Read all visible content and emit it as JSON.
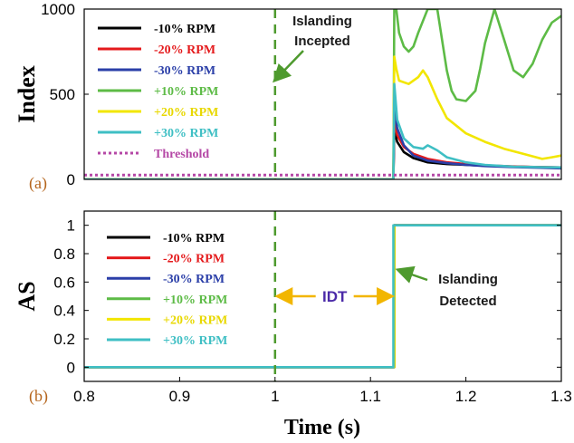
{
  "chart_data": [
    {
      "panel_label": "(a)",
      "type": "line",
      "ylabel": "Index",
      "xlim": [
        0.8,
        1.3
      ],
      "ylim": [
        0,
        1000
      ],
      "yticks": [
        0,
        500,
        1000
      ],
      "legend_position": "top-left",
      "series": [
        {
          "name": "-10% RPM",
          "color": "#000000",
          "x": [
            0.8,
            1.124,
            1.125,
            1.128,
            1.135,
            1.145,
            1.16,
            1.18,
            1.2,
            1.22,
            1.25,
            1.28,
            1.3
          ],
          "y": [
            0,
            0,
            290,
            220,
            160,
            125,
            100,
            90,
            85,
            80,
            75,
            72,
            70
          ]
        },
        {
          "name": "-20% RPM",
          "color": "#e41a1c",
          "x": [
            0.8,
            1.124,
            1.125,
            1.128,
            1.135,
            1.145,
            1.16,
            1.18,
            1.2,
            1.22,
            1.25,
            1.28,
            1.3
          ],
          "y": [
            0,
            0,
            340,
            260,
            190,
            150,
            120,
            100,
            90,
            82,
            76,
            72,
            70
          ]
        },
        {
          "name": "-30% RPM",
          "color": "#2b3fa8",
          "x": [
            0.8,
            1.124,
            1.125,
            1.128,
            1.135,
            1.145,
            1.16,
            1.18,
            1.2,
            1.22,
            1.25,
            1.28,
            1.3
          ],
          "y": [
            0,
            0,
            420,
            300,
            200,
            140,
            110,
            95,
            85,
            78,
            72,
            68,
            65
          ]
        },
        {
          "name": "+10% RPM",
          "color": "#5dbb46",
          "x": [
            0.8,
            1.124,
            1.125,
            1.127,
            1.13,
            1.135,
            1.14,
            1.145,
            1.15,
            1.16,
            1.17,
            1.18,
            1.185,
            1.19,
            1.2,
            1.21,
            1.215,
            1.22,
            1.23,
            1.24,
            1.25,
            1.26,
            1.27,
            1.28,
            1.29,
            1.3
          ],
          "y": [
            0,
            0,
            1000,
            1000,
            860,
            780,
            750,
            780,
            860,
            1000,
            1000,
            640,
            520,
            470,
            460,
            520,
            650,
            800,
            1000,
            820,
            640,
            600,
            680,
            820,
            920,
            960
          ]
        },
        {
          "name": "+20% RPM",
          "color": "#f2e600",
          "x": [
            0.8,
            1.124,
            1.125,
            1.127,
            1.13,
            1.14,
            1.15,
            1.155,
            1.16,
            1.17,
            1.18,
            1.2,
            1.22,
            1.24,
            1.26,
            1.28,
            1.29,
            1.3
          ],
          "y": [
            0,
            0,
            720,
            650,
            580,
            560,
            600,
            640,
            600,
            470,
            360,
            270,
            220,
            180,
            150,
            120,
            130,
            140
          ]
        },
        {
          "name": "+30% RPM",
          "color": "#3fbfc4",
          "x": [
            0.8,
            1.124,
            1.125,
            1.128,
            1.135,
            1.145,
            1.155,
            1.16,
            1.17,
            1.18,
            1.2,
            1.22,
            1.25,
            1.28,
            1.3
          ],
          "y": [
            0,
            0,
            560,
            350,
            240,
            190,
            180,
            200,
            170,
            130,
            100,
            85,
            75,
            72,
            70
          ]
        },
        {
          "name": "Threshold",
          "color": "#b548a6",
          "dashed": true,
          "x": [
            0.8,
            1.3
          ],
          "y": [
            25,
            25
          ]
        }
      ],
      "vline": {
        "x": 1.0,
        "color": "#4e9a2e",
        "dashed": true
      },
      "annotation": {
        "lines": [
          "Islanding",
          "Incepted"
        ],
        "arrow_to": [
          1.0,
          590
        ]
      }
    },
    {
      "panel_label": "(b)",
      "type": "line",
      "ylabel": "AS",
      "xlabel": "Time (s)",
      "xlim": [
        0.8,
        1.3
      ],
      "ylim": [
        -0.1,
        1.1
      ],
      "xticks": [
        0.8,
        0.9,
        1.0,
        1.1,
        1.2,
        1.3
      ],
      "xticklabels": [
        "0.8",
        "0.9",
        "1",
        "1.1",
        "1.2",
        "1.3"
      ],
      "yticks": [
        0,
        0.2,
        0.4,
        0.6,
        0.8,
        1
      ],
      "yticklabels": [
        "0",
        "0.2",
        "0.4",
        "0.6",
        "0.8",
        "1"
      ],
      "legend_position": "left",
      "series": [
        {
          "name": "-10% RPM",
          "color": "#000000",
          "x": [
            0.8,
            1.125,
            1.125,
            1.3
          ],
          "y": [
            0,
            0,
            1,
            1
          ]
        },
        {
          "name": "-20% RPM",
          "color": "#e41a1c",
          "x": [
            0.8,
            1.125,
            1.125,
            1.3
          ],
          "y": [
            0,
            0,
            1,
            1
          ]
        },
        {
          "name": "-30% RPM",
          "color": "#2b3fa8",
          "x": [
            0.8,
            1.125,
            1.125,
            1.3
          ],
          "y": [
            0,
            0,
            1,
            1
          ]
        },
        {
          "name": "+10% RPM",
          "color": "#5dbb46",
          "x": [
            0.8,
            1.125,
            1.125,
            1.3
          ],
          "y": [
            0,
            0,
            1,
            1
          ]
        },
        {
          "name": "+20% RPM",
          "color": "#f2e600",
          "x": [
            0.8,
            1.125,
            1.125,
            1.3
          ],
          "y": [
            0,
            0,
            1,
            1
          ]
        },
        {
          "name": "+30% RPM",
          "color": "#3fbfc4",
          "x": [
            0.8,
            1.124,
            1.124,
            1.3
          ],
          "y": [
            0,
            0,
            1,
            1
          ]
        }
      ],
      "vline": {
        "x": 1.0,
        "color": "#4e9a2e",
        "dashed": true
      },
      "idt": {
        "label": "IDT",
        "from": 1.0,
        "to": 1.125,
        "y": 0.5,
        "color": "#f2b600"
      },
      "annotation": {
        "lines": [
          "Islanding",
          "Detected"
        ],
        "arrow_to": [
          1.13,
          0.6
        ]
      }
    }
  ]
}
